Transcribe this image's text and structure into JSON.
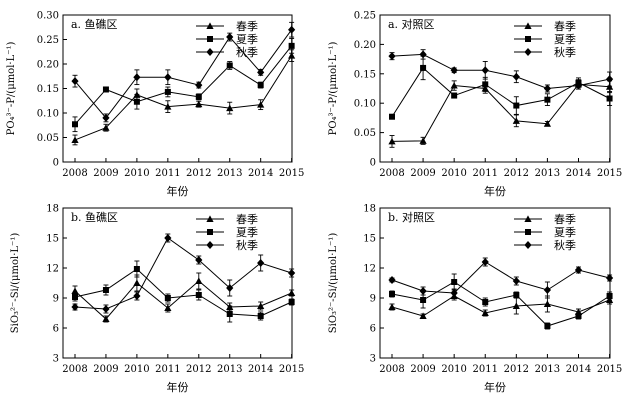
{
  "legend_labels": [
    "春季",
    "夏季",
    "秋季"
  ],
  "chart_data": [
    {
      "type": "line",
      "title": "a. 鱼礁区",
      "xlabel": "年份",
      "ylabel": "PO₄³⁻-P/(μmol·L⁻¹)",
      "x": [
        2008,
        2009,
        2010,
        2011,
        2012,
        2013,
        2014,
        2015
      ],
      "ylim": [
        0,
        0.3
      ],
      "yticks": [
        "0",
        "0.05",
        "0.10",
        "0.15",
        "0.20",
        "0.25",
        "0.30"
      ],
      "series": [
        {
          "name": "春季",
          "marker": "triangle",
          "values": [
            0.045,
            0.07,
            0.137,
            0.113,
            0.118,
            0.11,
            0.117,
            0.217
          ],
          "errors": [
            0.01,
            0.007,
            0.012,
            0.012,
            0.006,
            0.012,
            0.01,
            0.012
          ]
        },
        {
          "name": "夏季",
          "marker": "square",
          "values": [
            0.077,
            0.148,
            0.123,
            0.143,
            0.133,
            0.197,
            0.157,
            0.237
          ],
          "errors": [
            0.015,
            0.004,
            0.015,
            0.01,
            0.006,
            0.008,
            0.006,
            0.015
          ]
        },
        {
          "name": "秋季",
          "marker": "diamond",
          "values": [
            0.165,
            0.09,
            0.173,
            0.173,
            0.157,
            0.255,
            0.183,
            0.27
          ],
          "errors": [
            0.012,
            0.008,
            0.015,
            0.015,
            0.006,
            0.008,
            0.006,
            0.015
          ]
        }
      ]
    },
    {
      "type": "line",
      "title": "a. 对照区",
      "xlabel": "年份",
      "ylabel": "PO₄³⁻-P/(μmol·L⁻¹)",
      "x": [
        2008,
        2009,
        2010,
        2011,
        2012,
        2013,
        2014,
        2015
      ],
      "ylim": [
        0,
        0.25
      ],
      "yticks": [
        "0",
        "0.05",
        "0.10",
        "0.15",
        "0.20",
        "0.25"
      ],
      "series": [
        {
          "name": "春季",
          "marker": "triangle",
          "values": [
            0.035,
            0.036,
            0.13,
            0.125,
            0.07,
            0.065,
            0.132,
            0.128
          ],
          "errors": [
            0.01,
            0.006,
            0.008,
            0.008,
            0.01,
            0.004,
            0.008,
            0.01
          ]
        },
        {
          "name": "夏季",
          "marker": "square",
          "values": [
            0.077,
            0.16,
            0.113,
            0.132,
            0.096,
            0.106,
            0.135,
            0.108
          ],
          "errors": [
            0.003,
            0.02,
            0.004,
            0.012,
            0.015,
            0.01,
            0.008,
            0.012
          ]
        },
        {
          "name": "秋季",
          "marker": "diamond",
          "values": [
            0.18,
            0.183,
            0.156,
            0.156,
            0.145,
            0.125,
            0.13,
            0.141
          ],
          "errors": [
            0.006,
            0.008,
            0.004,
            0.015,
            0.01,
            0.006,
            0.006,
            0.012
          ]
        }
      ]
    },
    {
      "type": "line",
      "title": "b. 鱼礁区",
      "xlabel": "年份",
      "ylabel": "SiO₃²⁻-Si/(μmol·L⁻¹)",
      "x": [
        2008,
        2009,
        2010,
        2011,
        2012,
        2013,
        2014,
        2015
      ],
      "ylim": [
        3,
        18
      ],
      "yticks": [
        "3",
        "6",
        "9",
        "12",
        "15",
        "18"
      ],
      "series": [
        {
          "name": "春季",
          "marker": "triangle",
          "values": [
            9.7,
            6.9,
            10.5,
            8.0,
            10.7,
            8.1,
            8.2,
            9.5
          ],
          "errors": [
            0.5,
            0.3,
            0.8,
            0.4,
            0.8,
            0.4,
            0.4,
            0.3
          ]
        },
        {
          "name": "夏季",
          "marker": "square",
          "values": [
            9.1,
            9.8,
            11.9,
            9.0,
            9.3,
            7.4,
            7.2,
            8.6
          ],
          "errors": [
            0.4,
            0.5,
            0.8,
            0.4,
            0.5,
            0.8,
            0.4,
            0.3
          ]
        },
        {
          "name": "秋季",
          "marker": "diamond",
          "values": [
            8.1,
            7.9,
            9.2,
            15.0,
            12.8,
            10.0,
            12.5,
            11.5
          ],
          "errors": [
            0.3,
            0.4,
            0.4,
            0.4,
            0.4,
            0.8,
            0.8,
            0.4
          ]
        }
      ]
    },
    {
      "type": "line",
      "title": "b. 对照区",
      "xlabel": "年份",
      "ylabel": "SiO₃²⁻-Si/(μmol·L⁻¹)",
      "x": [
        2008,
        2009,
        2010,
        2011,
        2012,
        2013,
        2014,
        2015
      ],
      "ylim": [
        3,
        18
      ],
      "yticks": [
        "3",
        "6",
        "9",
        "12",
        "15",
        "18"
      ],
      "series": [
        {
          "name": "春季",
          "marker": "triangle",
          "values": [
            8.1,
            7.2,
            9.2,
            7.5,
            8.2,
            8.4,
            7.6,
            8.8
          ],
          "errors": [
            0.3,
            0.2,
            0.4,
            0.3,
            0.8,
            0.8,
            0.3,
            0.4
          ]
        },
        {
          "name": "夏季",
          "marker": "square",
          "values": [
            9.4,
            8.8,
            10.6,
            8.6,
            9.3,
            6.2,
            7.2,
            9.2
          ],
          "errors": [
            0.3,
            0.8,
            0.8,
            0.4,
            0.3,
            0.3,
            0.3,
            0.4
          ]
        },
        {
          "name": "秋季",
          "marker": "diamond",
          "values": [
            10.8,
            9.7,
            9.5,
            12.6,
            10.7,
            9.8,
            11.8,
            11.0
          ],
          "errors": [
            0.2,
            0.4,
            0.4,
            0.4,
            0.4,
            0.8,
            0.3,
            0.3
          ]
        }
      ]
    }
  ]
}
